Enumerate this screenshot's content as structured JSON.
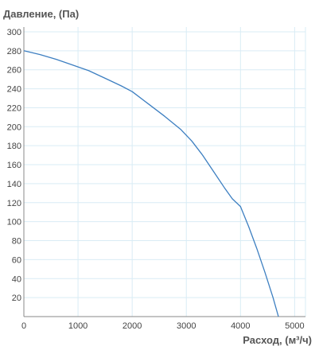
{
  "chart_data": {
    "type": "line",
    "title": "",
    "ylabel": "Давление, (Па)",
    "xlabel": "Расход, (м³/ч)",
    "xlim": [
      0,
      5200
    ],
    "ylim": [
      0,
      305
    ],
    "x_ticks": [
      0,
      1000,
      2000,
      3000,
      4000,
      5000
    ],
    "y_ticks": [
      20,
      40,
      60,
      80,
      100,
      120,
      140,
      160,
      180,
      200,
      220,
      240,
      260,
      280,
      300
    ],
    "grid": true,
    "legend": "none",
    "series": [
      {
        "color": "#3d7fc1",
        "points": [
          [
            0,
            280
          ],
          [
            300,
            276
          ],
          [
            600,
            271
          ],
          [
            900,
            265
          ],
          [
            1200,
            259
          ],
          [
            1500,
            251
          ],
          [
            1800,
            243
          ],
          [
            2000,
            237
          ],
          [
            2300,
            224
          ],
          [
            2600,
            211
          ],
          [
            2900,
            197
          ],
          [
            3100,
            185
          ],
          [
            3300,
            170
          ],
          [
            3500,
            153
          ],
          [
            3700,
            136
          ],
          [
            3850,
            124
          ],
          [
            4000,
            116
          ],
          [
            4150,
            95
          ],
          [
            4300,
            72
          ],
          [
            4450,
            47
          ],
          [
            4600,
            20
          ],
          [
            4700,
            0
          ]
        ]
      }
    ],
    "colors": {
      "line": "#3d7fc1",
      "grid": "#d9ecf5",
      "axis": "#888888"
    }
  }
}
